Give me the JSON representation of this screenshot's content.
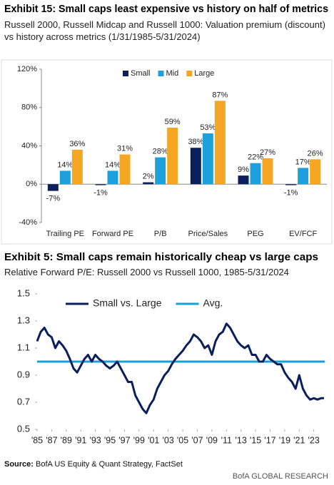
{
  "chart_data": [
    {
      "type": "bar",
      "title": "Exhibit 15: Small caps least expensive vs history on half of metrics",
      "subtitle": "Russell 2000, Russell Midcap and Russell 1000: Valuation premium (discount) vs history across metrics (1/31/1985-5/31/2024)",
      "categories": [
        "Trailing PE",
        "Forward PE",
        "P/B",
        "Price/Sales",
        "PEG",
        "EV/FCF"
      ],
      "series": [
        {
          "name": "Small",
          "color": "#0b1f5c",
          "values": [
            -7,
            -1,
            2,
            38,
            9,
            -1
          ],
          "value_labels": [
            "-7%",
            "-1%",
            "2%",
            "38%",
            "9%",
            "-1%"
          ]
        },
        {
          "name": "Mid",
          "color": "#1ea0dc",
          "values": [
            14,
            14,
            28,
            53,
            22,
            17
          ],
          "value_labels": [
            "14%",
            "14%",
            "28%",
            "53%",
            "22%",
            "17%"
          ]
        },
        {
          "name": "Large",
          "color": "#f5a623",
          "values": [
            36,
            31,
            59,
            87,
            27,
            26
          ],
          "value_labels": [
            "36%",
            "31%",
            "59%",
            "87%",
            "27%",
            "26%"
          ]
        }
      ],
      "ylim": [
        -40,
        120
      ],
      "yticks": [
        {
          "value": -40,
          "label": "-40%"
        },
        {
          "value": 0,
          "label": "0%"
        },
        {
          "value": 40,
          "label": "40%"
        },
        {
          "value": 80,
          "label": "80%"
        },
        {
          "value": 120,
          "label": "120%"
        }
      ],
      "grid": false,
      "legend": "top"
    },
    {
      "type": "line",
      "title": "Exhibit 5: Small caps remain historically cheap vs large caps",
      "subtitle": "Relative Forward P/E: Russell 2000 vs Russell 1000, 1985-5/31/2024",
      "x": [
        1985,
        1985.5,
        1986,
        1986.5,
        1987,
        1987.5,
        1988,
        1988.5,
        1989,
        1989.5,
        1990,
        1990.5,
        1991,
        1991.5,
        1992,
        1992.5,
        1993,
        1993.5,
        1994,
        1994.5,
        1995,
        1995.5,
        1996,
        1996.5,
        1997,
        1997.5,
        1998,
        1998.5,
        1999,
        1999.5,
        2000,
        2000.5,
        2001,
        2001.5,
        2002,
        2002.5,
        2003,
        2003.5,
        2004,
        2004.5,
        2005,
        2005.5,
        2006,
        2006.5,
        2007,
        2007.5,
        2008,
        2008.5,
        2009,
        2009.5,
        2010,
        2010.5,
        2011,
        2011.5,
        2012,
        2012.5,
        2013,
        2013.5,
        2014,
        2014.5,
        2015,
        2015.5,
        2016,
        2016.5,
        2017,
        2017.5,
        2018,
        2018.5,
        2019,
        2019.5,
        2020,
        2020.5,
        2021,
        2021.5,
        2022,
        2022.5,
        2023,
        2023.5,
        2024,
        2024.4
      ],
      "series": [
        {
          "name": "Small vs. Large",
          "color": "#0b1f5c",
          "values": [
            1.15,
            1.22,
            1.25,
            1.2,
            1.18,
            1.1,
            1.15,
            1.12,
            1.08,
            1.02,
            0.95,
            0.92,
            0.97,
            1.02,
            1.05,
            1.0,
            1.05,
            1.02,
            1.0,
            0.97,
            0.95,
            0.97,
            1.0,
            0.95,
            0.9,
            0.85,
            0.85,
            0.75,
            0.7,
            0.65,
            0.62,
            0.68,
            0.72,
            0.8,
            0.85,
            0.9,
            0.93,
            0.98,
            1.02,
            1.05,
            1.08,
            1.12,
            1.15,
            1.2,
            1.18,
            1.15,
            1.1,
            1.12,
            1.05,
            1.15,
            1.2,
            1.22,
            1.28,
            1.25,
            1.2,
            1.15,
            1.12,
            1.1,
            1.12,
            1.05,
            1.05,
            1.0,
            1.0,
            1.05,
            1.02,
            1.0,
            0.98,
            0.98,
            0.92,
            0.88,
            0.85,
            0.8,
            0.9,
            0.8,
            0.75,
            0.72,
            0.73,
            0.72,
            0.73,
            0.73
          ]
        }
      ],
      "reference_line": {
        "name": "Avg.",
        "value": 1.0,
        "color": "#1aa0d8"
      },
      "xlim": [
        1985,
        2024.5
      ],
      "xticks": [
        {
          "value": 1985,
          "label": "'85"
        },
        {
          "value": 1987,
          "label": "'87"
        },
        {
          "value": 1989,
          "label": "'89"
        },
        {
          "value": 1991,
          "label": "'91"
        },
        {
          "value": 1993,
          "label": "'93"
        },
        {
          "value": 1995,
          "label": "'95"
        },
        {
          "value": 1997,
          "label": "'97"
        },
        {
          "value": 1999,
          "label": "'99"
        },
        {
          "value": 2001,
          "label": "'01"
        },
        {
          "value": 2003,
          "label": "'03"
        },
        {
          "value": 2005,
          "label": "'05"
        },
        {
          "value": 2007,
          "label": "'07"
        },
        {
          "value": 2009,
          "label": "'09"
        },
        {
          "value": 2011,
          "label": "'11"
        },
        {
          "value": 2013,
          "label": "'13"
        },
        {
          "value": 2015,
          "label": "'15"
        },
        {
          "value": 2017,
          "label": "'17"
        },
        {
          "value": 2019,
          "label": "'19"
        },
        {
          "value": 2021,
          "label": "'21"
        },
        {
          "value": 2023,
          "label": "'23"
        }
      ],
      "ylim": [
        0.5,
        1.5
      ],
      "yticks": [
        0.5,
        0.7,
        0.9,
        1.1,
        1.3,
        1.5
      ],
      "grid": false,
      "legend": "top"
    }
  ],
  "footer": {
    "source_label": "Source:",
    "source": "BofA US Equity & Quant Strategy, FactSet",
    "brand": "BofA GLOBAL RESEARCH"
  }
}
